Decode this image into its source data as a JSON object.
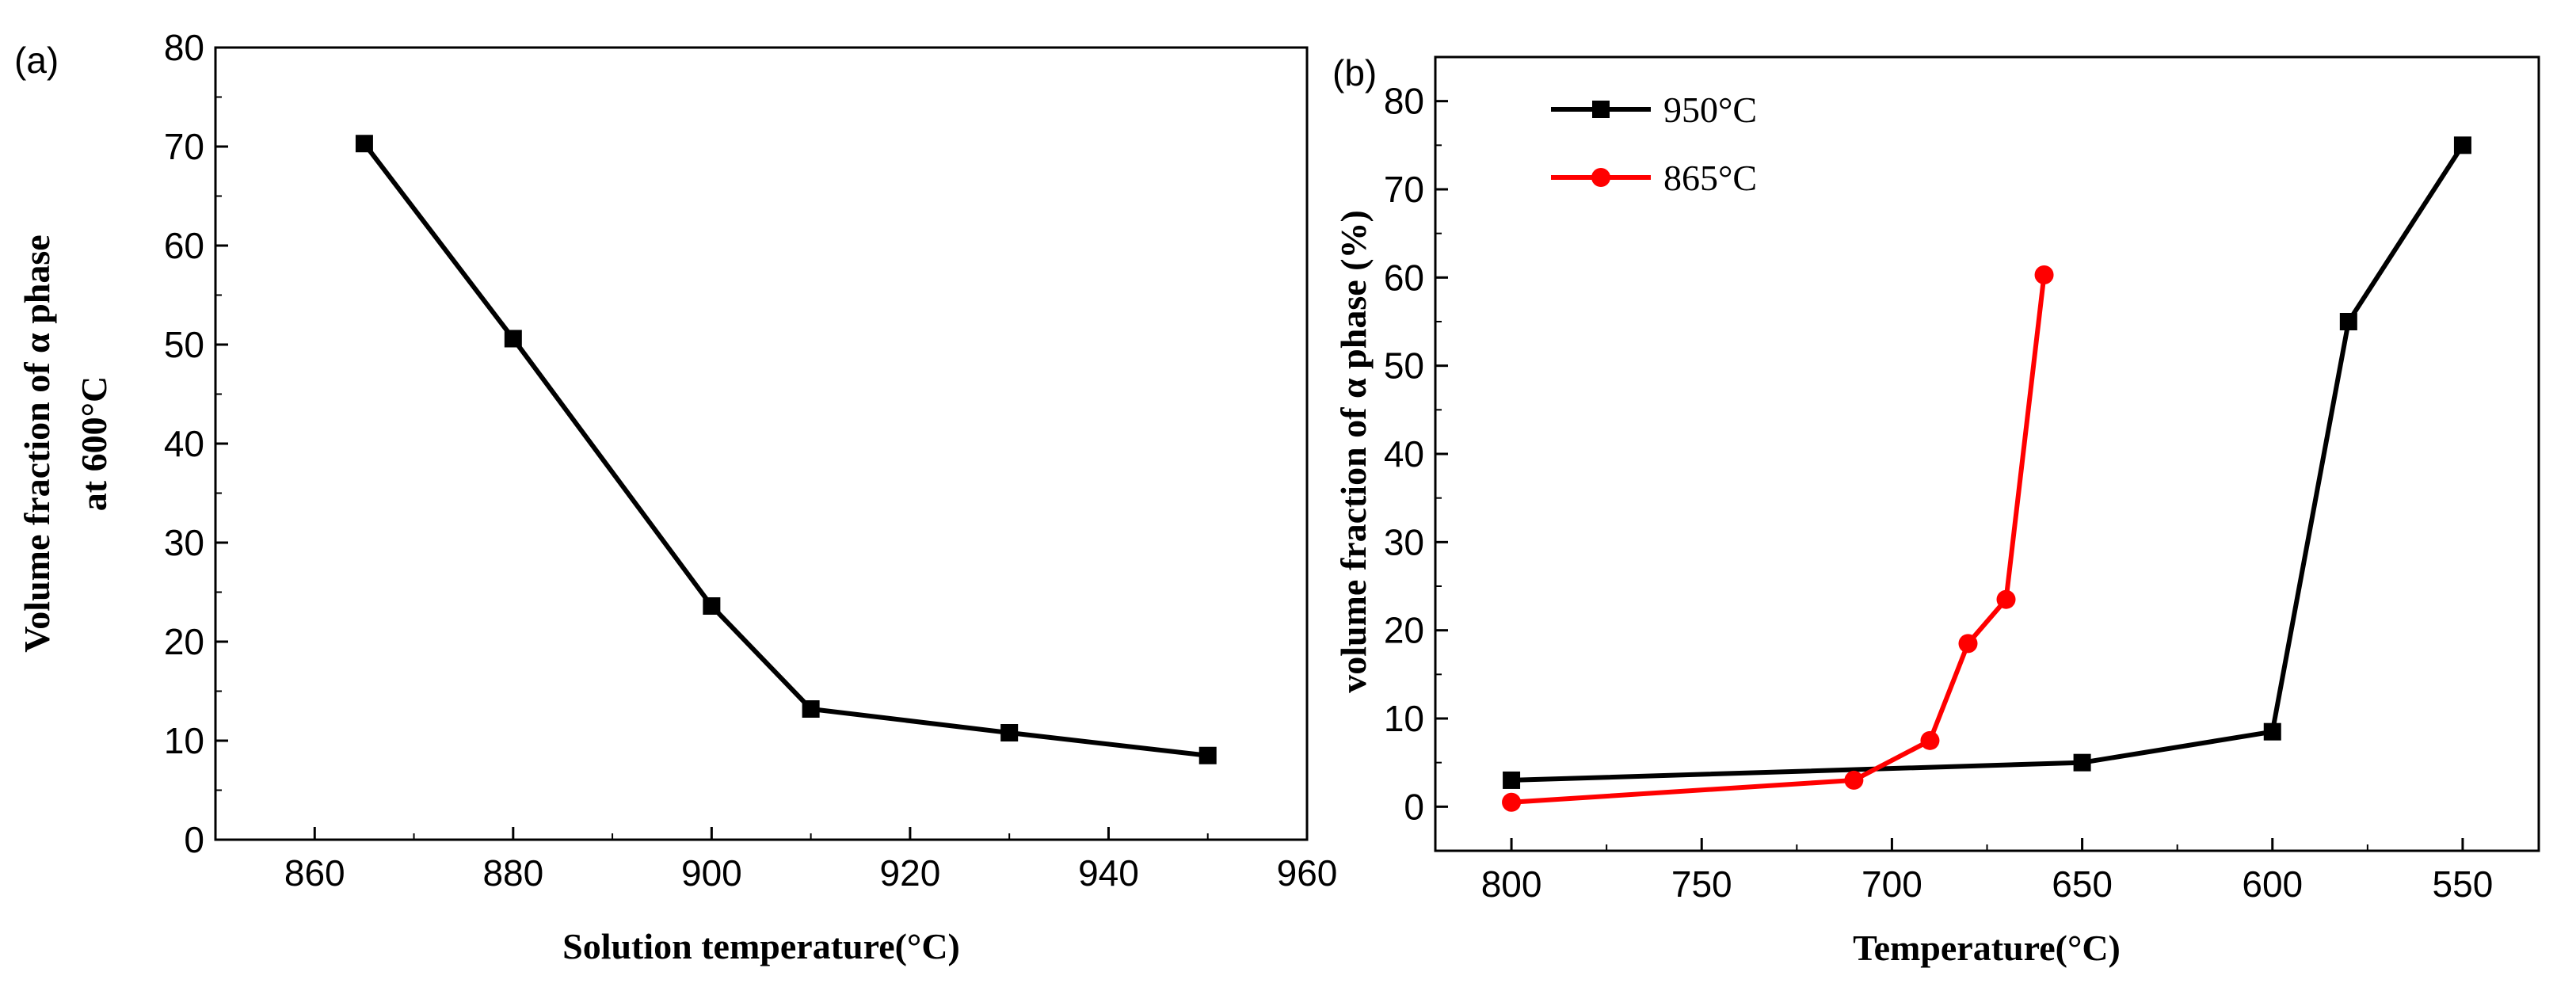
{
  "chart_data": [
    {
      "type": "line",
      "panel_label": "(a)",
      "title": "",
      "xlabel": "Solution temperature(°C)",
      "ylabel_line1": "Volume fraction of α phase",
      "ylabel_line2": "at 600°C",
      "xlim": [
        850,
        960
      ],
      "ylim": [
        0,
        80
      ],
      "x_ticks": [
        860,
        880,
        900,
        920,
        940,
        960
      ],
      "y_ticks": [
        0,
        10,
        20,
        30,
        40,
        50,
        60,
        70,
        80
      ],
      "x_reversed": false,
      "series": [
        {
          "name": "",
          "color": "#000000",
          "marker": "square",
          "x": [
            865,
            880,
            900,
            910,
            930,
            950
          ],
          "y": [
            70.3,
            50.6,
            23.6,
            13.2,
            10.8,
            8.5
          ]
        }
      ]
    },
    {
      "type": "line",
      "panel_label": "(b)",
      "title": "",
      "xlabel": "Temperature(°C)",
      "ylabel": "volume fraction of α phase (%)",
      "xlim": [
        820,
        530
      ],
      "ylim": [
        -5,
        85
      ],
      "x_ticks": [
        800,
        750,
        700,
        650,
        600,
        550
      ],
      "y_ticks": [
        0,
        10,
        20,
        30,
        40,
        50,
        60,
        70,
        80
      ],
      "x_reversed": true,
      "legend_position": "top-left",
      "series": [
        {
          "name": "950°C",
          "color": "#000000",
          "marker": "square",
          "x": [
            800,
            650,
            600,
            580,
            550
          ],
          "y": [
            3.0,
            5.0,
            8.5,
            55.0,
            75.0
          ]
        },
        {
          "name": "865°C",
          "color": "#ff0000",
          "marker": "circle",
          "x": [
            800,
            710,
            690,
            680,
            670,
            660
          ],
          "y": [
            0.5,
            3.0,
            7.5,
            18.5,
            23.5,
            60.3
          ]
        }
      ]
    }
  ]
}
